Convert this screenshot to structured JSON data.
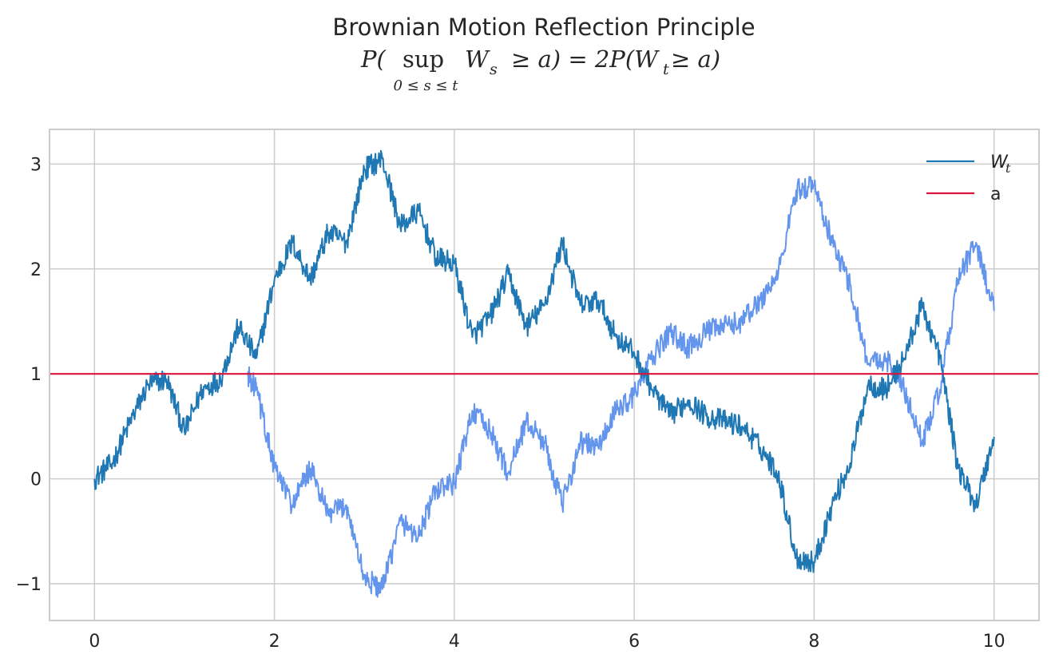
{
  "chart_data": {
    "type": "line",
    "title": "Brownian Motion Reflection Principle",
    "subtitle": {
      "lhs_open": "P(",
      "operator": "sup",
      "subscript": "0 ≤ s ≤ t",
      "inner": "W",
      "inner_sub": "s",
      "rhs": "≥ a) = 2P(W",
      "rhs_sub": "t",
      "rhs_tail": " ≥ a)"
    },
    "xlim": [
      -0.5,
      10.5
    ],
    "ylim": [
      -1.35,
      3.33
    ],
    "xticks": [
      0,
      2,
      4,
      6,
      8,
      10
    ],
    "yticks": [
      -1,
      0,
      1,
      2,
      3
    ],
    "xtick_labels": [
      "0",
      "2",
      "4",
      "6",
      "8",
      "10"
    ],
    "ytick_labels": [
      "−1",
      "0",
      "1",
      "2",
      "3"
    ],
    "grid": true,
    "legend_position": "top-right",
    "barrier": {
      "name": "a",
      "value": 1.0,
      "color": "#dc143c"
    },
    "series": [
      {
        "name": "W",
        "name_sub": "t",
        "color": "#1f77b4",
        "x": [
          0,
          0.2,
          0.4,
          0.6,
          0.8,
          1.0,
          1.2,
          1.4,
          1.6,
          1.8,
          2.0,
          2.2,
          2.4,
          2.6,
          2.8,
          3.0,
          3.2,
          3.4,
          3.6,
          3.8,
          4.0,
          4.2,
          4.4,
          4.6,
          4.8,
          5.0,
          5.2,
          5.4,
          5.6,
          5.8,
          6.0,
          6.2,
          6.4,
          6.6,
          6.8,
          7.0,
          7.2,
          7.4,
          7.6,
          7.8,
          8.0,
          8.2,
          8.4,
          8.6,
          8.8,
          9.0,
          9.2,
          9.4,
          9.6,
          9.8,
          10.0
        ],
        "y": [
          0.0,
          0.15,
          0.55,
          0.9,
          0.95,
          0.45,
          0.85,
          0.95,
          1.45,
          1.15,
          1.9,
          2.25,
          1.9,
          2.35,
          2.25,
          2.95,
          3.05,
          2.4,
          2.55,
          2.1,
          2.05,
          1.35,
          1.55,
          1.95,
          1.45,
          1.65,
          2.25,
          1.65,
          1.7,
          1.35,
          1.2,
          0.85,
          0.6,
          0.75,
          0.6,
          0.55,
          0.5,
          0.3,
          0.05,
          -0.75,
          -0.8,
          -0.25,
          0.15,
          0.9,
          0.85,
          1.15,
          1.65,
          1.15,
          0.1,
          -0.25,
          0.4
        ]
      },
      {
        "name": "",
        "color": "#6495ed",
        "x": [
          1.7,
          1.8,
          2.0,
          2.2,
          2.4,
          2.6,
          2.8,
          3.0,
          3.2,
          3.4,
          3.6,
          3.8,
          4.0,
          4.2,
          4.4,
          4.6,
          4.8,
          5.0,
          5.2,
          5.4,
          5.6,
          5.8,
          6.0,
          6.2,
          6.4,
          6.6,
          6.8,
          7.0,
          7.2,
          7.4,
          7.6,
          7.8,
          8.0,
          8.2,
          8.4,
          8.6,
          8.8,
          9.0,
          9.2,
          9.4,
          9.6,
          9.8,
          10.0
        ],
        "y": [
          1.0,
          0.85,
          0.1,
          -0.25,
          0.1,
          -0.35,
          -0.25,
          -0.95,
          -1.05,
          -0.4,
          -0.55,
          -0.1,
          -0.05,
          0.65,
          0.45,
          0.05,
          0.55,
          0.35,
          -0.25,
          0.35,
          0.3,
          0.65,
          0.8,
          1.15,
          1.4,
          1.25,
          1.4,
          1.45,
          1.5,
          1.7,
          1.95,
          2.75,
          2.8,
          2.25,
          1.85,
          1.1,
          1.15,
          0.85,
          0.35,
          0.85,
          1.9,
          2.25,
          1.6
        ]
      }
    ]
  }
}
